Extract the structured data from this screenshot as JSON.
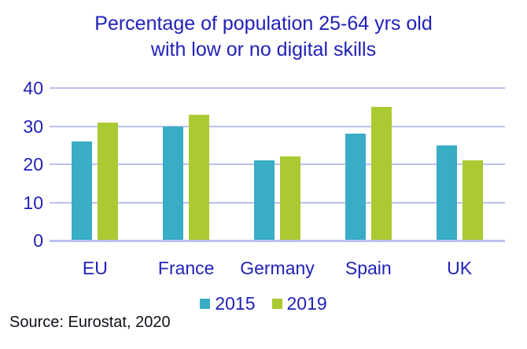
{
  "header": {
    "title_lines": "Percentage of population 25-64 yrs old\nwith low or no digital skills"
  },
  "source_note": "Source: Eurostat, 2020",
  "colors": {
    "background": "#FFFFFF",
    "text_blue": "#2121BA",
    "bar_2015_teal": "#38ADC5",
    "bar_2019_green": "#ABC931",
    "gridline_lavender": "#BCC0F0",
    "source_text": "#101018"
  },
  "chart_data": {
    "type": "bar",
    "title": "Percentage of population 25-64 yrs old with low or no digital skills",
    "categories": [
      "EU",
      "France",
      "Germany",
      "Spain",
      "UK"
    ],
    "series": [
      {
        "name": "2015",
        "color": "#38ADC5",
        "values": [
          26,
          30,
          21,
          28,
          25
        ]
      },
      {
        "name": "2019",
        "color": "#ABC931",
        "values": [
          31,
          33,
          22,
          35,
          21
        ]
      }
    ],
    "xlabel": "",
    "ylabel": "",
    "ylim": [
      0,
      40
    ],
    "yticks": [
      0,
      10,
      20,
      30,
      40
    ],
    "grid": true,
    "legend_position": "bottom",
    "source": "Source: Eurostat, 2020"
  }
}
